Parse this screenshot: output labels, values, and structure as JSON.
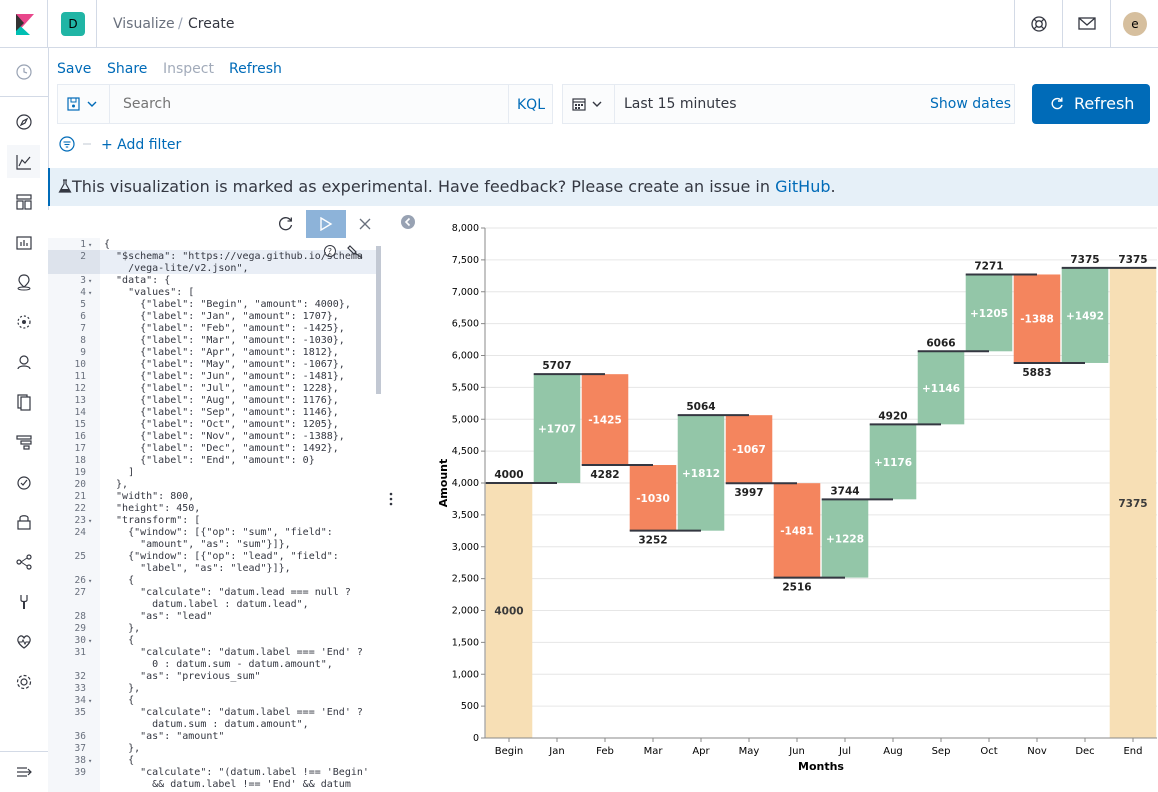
{
  "header": {
    "space_initial": "D",
    "breadcrumb": [
      "Visualize",
      "Create"
    ],
    "user_initial": "e"
  },
  "top_menu": [
    "Save",
    "Share",
    "Inspect",
    "Refresh"
  ],
  "query": {
    "placeholder": "Search",
    "language": "KQL",
    "time_range": "Last 15 minutes",
    "show_dates": "Show dates",
    "refresh_label": "Refresh",
    "add_filter": "+ Add filter"
  },
  "callout": {
    "text": "This visualization is marked as experimental. Have feedback? Please create an issue in ",
    "link": "GitHub",
    "suffix": "."
  },
  "editor": {
    "lines": [
      {
        "n": "1",
        "fold": true,
        "t": "{"
      },
      {
        "n": "2",
        "t": "  \"$schema\": \"https://vega.github.io/schema"
      },
      {
        "n": "",
        "t": "    /vega-lite/v2.json\","
      },
      {
        "n": "3",
        "fold": true,
        "t": "  \"data\": {"
      },
      {
        "n": "4",
        "fold": true,
        "t": "    \"values\": ["
      },
      {
        "n": "5",
        "t": "      {\"label\": \"Begin\", \"amount\": 4000},"
      },
      {
        "n": "6",
        "t": "      {\"label\": \"Jan\", \"amount\": 1707},"
      },
      {
        "n": "7",
        "t": "      {\"label\": \"Feb\", \"amount\": -1425},"
      },
      {
        "n": "8",
        "t": "      {\"label\": \"Mar\", \"amount\": -1030},"
      },
      {
        "n": "9",
        "t": "      {\"label\": \"Apr\", \"amount\": 1812},"
      },
      {
        "n": "10",
        "t": "      {\"label\": \"May\", \"amount\": -1067},"
      },
      {
        "n": "11",
        "t": "      {\"label\": \"Jun\", \"amount\": -1481},"
      },
      {
        "n": "12",
        "t": "      {\"label\": \"Jul\", \"amount\": 1228},"
      },
      {
        "n": "13",
        "t": "      {\"label\": \"Aug\", \"amount\": 1176},"
      },
      {
        "n": "14",
        "t": "      {\"label\": \"Sep\", \"amount\": 1146},"
      },
      {
        "n": "15",
        "t": "      {\"label\": \"Oct\", \"amount\": 1205},"
      },
      {
        "n": "16",
        "t": "      {\"label\": \"Nov\", \"amount\": -1388},"
      },
      {
        "n": "17",
        "t": "      {\"label\": \"Dec\", \"amount\": 1492},"
      },
      {
        "n": "18",
        "t": "      {\"label\": \"End\", \"amount\": 0}"
      },
      {
        "n": "19",
        "t": "    ]"
      },
      {
        "n": "20",
        "t": "  },"
      },
      {
        "n": "21",
        "t": "  \"width\": 800,"
      },
      {
        "n": "22",
        "t": "  \"height\": 450,"
      },
      {
        "n": "23",
        "fold": true,
        "t": "  \"transform\": ["
      },
      {
        "n": "24",
        "t": "    {\"window\": [{\"op\": \"sum\", \"field\":"
      },
      {
        "n": "",
        "t": "      \"amount\", \"as\": \"sum\"}]},"
      },
      {
        "n": "25",
        "t": "    {\"window\": [{\"op\": \"lead\", \"field\":"
      },
      {
        "n": "",
        "t": "      \"label\", \"as\": \"lead\"}]},"
      },
      {
        "n": "26",
        "fold": true,
        "t": "    {"
      },
      {
        "n": "27",
        "t": "      \"calculate\": \"datum.lead === null ?"
      },
      {
        "n": "",
        "t": "        datum.label : datum.lead\","
      },
      {
        "n": "28",
        "t": "      \"as\": \"lead\""
      },
      {
        "n": "29",
        "t": "    },"
      },
      {
        "n": "30",
        "fold": true,
        "t": "    {"
      },
      {
        "n": "31",
        "t": "      \"calculate\": \"datum.label === 'End' ?"
      },
      {
        "n": "",
        "t": "        0 : datum.sum - datum.amount\","
      },
      {
        "n": "32",
        "t": "      \"as\": \"previous_sum\""
      },
      {
        "n": "33",
        "t": "    },"
      },
      {
        "n": "34",
        "fold": true,
        "t": "    {"
      },
      {
        "n": "35",
        "t": "      \"calculate\": \"datum.label === 'End' ?"
      },
      {
        "n": "",
        "t": "        datum.sum : datum.amount\","
      },
      {
        "n": "36",
        "t": "      \"as\": \"amount\""
      },
      {
        "n": "37",
        "t": "    },"
      },
      {
        "n": "38",
        "fold": true,
        "t": "    {"
      },
      {
        "n": "39",
        "t": "      \"calculate\": \"(datum.label !== 'Begin'"
      },
      {
        "n": "",
        "t": "        && datum.label !== 'End' && datum"
      }
    ]
  },
  "colors": {
    "accent": "#006bb8",
    "begin_end": "#f7dfb5",
    "increase": "#93c6a8",
    "decrease": "#f4855e",
    "rule": "#343741"
  },
  "chart_data": {
    "type": "bar",
    "subtype": "waterfall",
    "xlabel": "Months",
    "ylabel": "Amount",
    "ylim": [
      0,
      8000
    ],
    "yticks": [
      0,
      500,
      1000,
      1500,
      2000,
      2500,
      3000,
      3500,
      4000,
      4500,
      5000,
      5500,
      6000,
      6500,
      7000,
      7500,
      8000
    ],
    "ytick_labels": [
      "0",
      "500",
      "1,000",
      "1,500",
      "2,000",
      "2,500",
      "3,000",
      "3,500",
      "4,000",
      "4,500",
      "5,000",
      "5,500",
      "6,000",
      "6,500",
      "7,000",
      "7,500",
      "8,000"
    ],
    "categories": [
      "Begin",
      "Jan",
      "Feb",
      "Mar",
      "Apr",
      "May",
      "Jun",
      "Jul",
      "Aug",
      "Sep",
      "Oct",
      "Nov",
      "Dec",
      "End"
    ],
    "amounts": [
      4000,
      1707,
      -1425,
      -1030,
      1812,
      -1067,
      -1481,
      1228,
      1176,
      1146,
      1205,
      -1388,
      1492,
      0
    ],
    "bars": [
      {
        "label": "Begin",
        "start": 0,
        "end": 4000,
        "kind": "begin",
        "center": "4000",
        "top": "4000",
        "bottom": ""
      },
      {
        "label": "Jan",
        "start": 4000,
        "end": 5707,
        "kind": "up",
        "center": "+1707",
        "top": "5707",
        "bottom": ""
      },
      {
        "label": "Feb",
        "start": 5707,
        "end": 4282,
        "kind": "down",
        "center": "-1425",
        "top": "",
        "bottom": "4282"
      },
      {
        "label": "Mar",
        "start": 4282,
        "end": 3252,
        "kind": "down",
        "center": "-1030",
        "top": "",
        "bottom": "3252"
      },
      {
        "label": "Apr",
        "start": 3252,
        "end": 5064,
        "kind": "up",
        "center": "+1812",
        "top": "5064",
        "bottom": ""
      },
      {
        "label": "May",
        "start": 5064,
        "end": 3997,
        "kind": "down",
        "center": "-1067",
        "top": "",
        "bottom": "3997"
      },
      {
        "label": "Jun",
        "start": 3997,
        "end": 2516,
        "kind": "down",
        "center": "-1481",
        "top": "",
        "bottom": "2516"
      },
      {
        "label": "Jul",
        "start": 2516,
        "end": 3744,
        "kind": "up",
        "center": "+1228",
        "top": "3744",
        "bottom": ""
      },
      {
        "label": "Aug",
        "start": 3744,
        "end": 4920,
        "kind": "up",
        "center": "+1176",
        "top": "4920",
        "bottom": ""
      },
      {
        "label": "Sep",
        "start": 4920,
        "end": 6066,
        "kind": "up",
        "center": "+1146",
        "top": "6066",
        "bottom": ""
      },
      {
        "label": "Oct",
        "start": 6066,
        "end": 7271,
        "kind": "up",
        "center": "+1205",
        "top": "7271",
        "bottom": ""
      },
      {
        "label": "Nov",
        "start": 7271,
        "end": 5883,
        "kind": "down",
        "center": "-1388",
        "top": "",
        "bottom": "5883"
      },
      {
        "label": "Dec",
        "start": 5883,
        "end": 7375,
        "kind": "up",
        "center": "+1492",
        "top": "7375",
        "bottom": ""
      },
      {
        "label": "End",
        "start": 0,
        "end": 7375,
        "kind": "end",
        "center": "7375",
        "top": "7375",
        "bottom": ""
      }
    ],
    "grid": true,
    "legend": "none"
  }
}
